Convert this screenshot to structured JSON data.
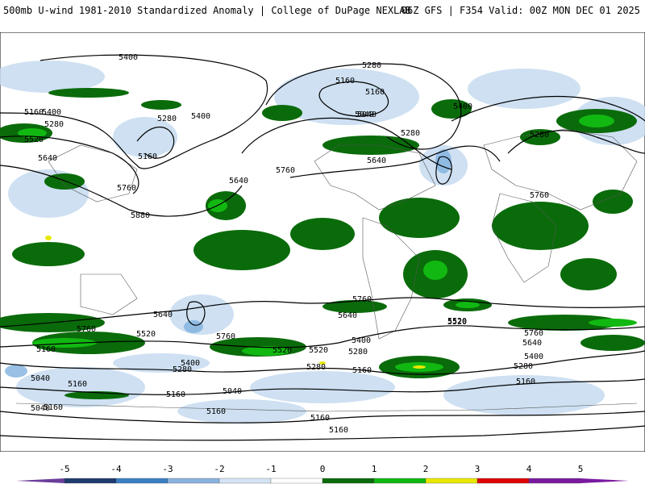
{
  "header": {
    "left_title": "500mb U-wind 1981-2010 Standardized Anomaly | College of DuPage NEXLAB",
    "right_title": "06Z GFS | F354 Valid: 00Z MON DEC 01 2025"
  },
  "contour_labels": [
    "5400",
    "5280",
    "5160",
    "5400",
    "5040",
    "5280",
    "5160",
    "5400",
    "5280",
    "5160",
    "5520",
    "5640",
    "5760",
    "5280",
    "5160",
    "5040",
    "5400",
    "5280",
    "5760",
    "5640",
    "5640",
    "5760",
    "5880",
    "5760",
    "5640",
    "5520",
    "5760",
    "5640",
    "5760",
    "5520",
    "5400",
    "5280",
    "5160",
    "5040",
    "5160",
    "5280",
    "5520",
    "5400",
    "5160",
    "5040",
    "5160",
    "5160",
    "5160",
    "5280",
    "5400",
    "5520",
    "5640",
    "5760",
    "5520",
    "5280",
    "5160",
    "5160",
    "5040",
    "5160"
  ],
  "legend": {
    "ticks": [
      "-5",
      "-4",
      "-3",
      "-2",
      "-1",
      "0",
      "1",
      "2",
      "3",
      "4",
      "5"
    ],
    "colors": [
      "#6a3d9a",
      "#1f3a6e",
      "#3a7fc4",
      "#8ab4e0",
      "#d4e4f4",
      "#ffffff",
      "#0a6b0a",
      "#12b812",
      "#e8e800",
      "#e00000",
      "#7a1aa0"
    ]
  }
}
